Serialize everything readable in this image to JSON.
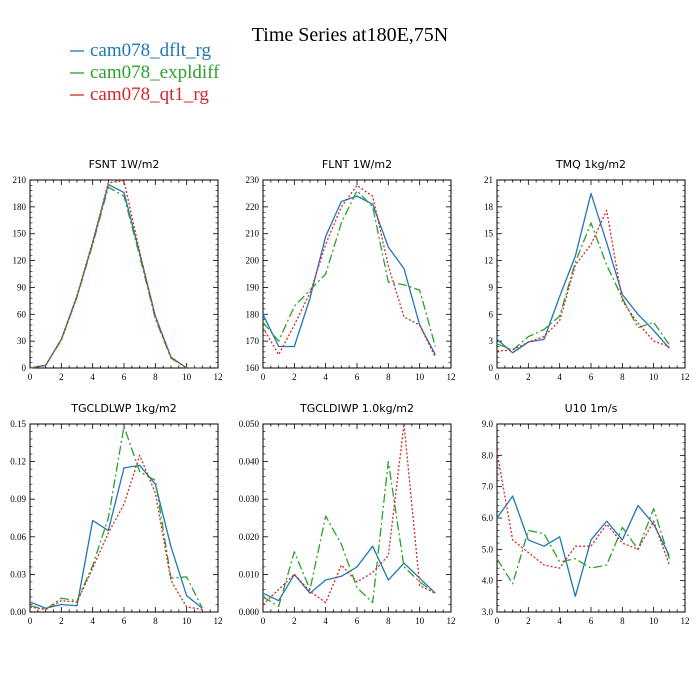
{
  "figure_title": "Time Series at180E,75N",
  "legend": [
    {
      "label": "cam078_dflt_rg",
      "color": "#1f77b4",
      "dash": "solid"
    },
    {
      "label": "cam078_expldiff",
      "color": "#2ca02c",
      "dash": "dashdot"
    },
    {
      "label": "cam078_qt1_rg",
      "color": "#d62728",
      "dash": "dotted"
    }
  ],
  "chart_data": [
    {
      "type": "line",
      "title": "FSNT   1W/m2",
      "xlim": [
        0,
        12
      ],
      "ylim": [
        0,
        210
      ],
      "xticks": [
        0,
        2,
        4,
        6,
        8,
        10,
        12
      ],
      "yticks": [
        0,
        30,
        60,
        90,
        120,
        150,
        180,
        210
      ],
      "ytick_labels": [
        "0",
        "30",
        "60",
        "90",
        "120",
        "150",
        "180",
        "210"
      ],
      "x": [
        0,
        1,
        2,
        3,
        4,
        5,
        6,
        7,
        8,
        9,
        10,
        11
      ],
      "series": [
        {
          "name": "cam078_dflt_rg",
          "values": [
            0,
            3,
            32,
            80,
            140,
            205,
            196,
            128,
            58,
            12,
            0,
            0
          ]
        },
        {
          "name": "cam078_expldiff",
          "values": [
            0,
            3,
            31,
            79,
            138,
            202,
            192,
            125,
            55,
            11,
            0,
            0
          ]
        },
        {
          "name": "cam078_qt1_rg",
          "values": [
            0,
            3,
            32,
            81,
            141,
            207,
            209,
            130,
            57,
            12,
            0,
            0
          ]
        }
      ]
    },
    {
      "type": "line",
      "title": "FLNT   1W/m2",
      "xlim": [
        0,
        12
      ],
      "ylim": [
        160,
        230
      ],
      "xticks": [
        0,
        2,
        4,
        6,
        8,
        10,
        12
      ],
      "yticks": [
        160,
        170,
        180,
        190,
        200,
        210,
        220,
        230
      ],
      "ytick_labels": [
        "160",
        "170",
        "180",
        "190",
        "200",
        "210",
        "220",
        "230"
      ],
      "x": [
        0,
        1,
        2,
        3,
        4,
        5,
        6,
        7,
        8,
        9,
        10,
        11
      ],
      "series": [
        {
          "name": "cam078_dflt_rg",
          "values": [
            180,
            168,
            168,
            186,
            209,
            222,
            224,
            221,
            205,
            197,
            176,
            165
          ]
        },
        {
          "name": "cam078_expldiff",
          "values": [
            177,
            170,
            183,
            189,
            195,
            214,
            226,
            220,
            192,
            191,
            189,
            168
          ]
        },
        {
          "name": "cam078_qt1_rg",
          "values": [
            175,
            165,
            176,
            188,
            206,
            220,
            228,
            224,
            198,
            179,
            176,
            164
          ]
        }
      ]
    },
    {
      "type": "line",
      "title": "TMQ   1kg/m2",
      "xlim": [
        0,
        12
      ],
      "ylim": [
        0,
        21
      ],
      "xticks": [
        0,
        2,
        4,
        6,
        8,
        10,
        12
      ],
      "yticks": [
        0,
        3,
        6,
        9,
        12,
        15,
        18,
        21
      ],
      "ytick_labels": [
        "0",
        "3",
        "6",
        "9",
        "12",
        "15",
        "18",
        "21"
      ],
      "x": [
        0,
        1,
        2,
        3,
        4,
        5,
        6,
        7,
        8,
        9,
        10,
        11
      ],
      "series": [
        {
          "name": "cam078_dflt_rg",
          "values": [
            3.2,
            1.7,
            2.9,
            3.2,
            8.0,
            12.5,
            19.5,
            14.0,
            8.2,
            6.0,
            4.2,
            2.2
          ]
        },
        {
          "name": "cam078_expldiff",
          "values": [
            2.7,
            2.0,
            3.5,
            4.3,
            5.8,
            11.8,
            16.2,
            11.5,
            7.8,
            4.5,
            5.1,
            2.6
          ]
        },
        {
          "name": "cam078_qt1_rg",
          "values": [
            1.9,
            2.0,
            2.9,
            3.5,
            5.3,
            11.5,
            13.8,
            17.6,
            7.5,
            5.0,
            3.0,
            2.4
          ]
        }
      ]
    },
    {
      "type": "line",
      "title": "TGCLDLWP   1kg/m2",
      "xlim": [
        0,
        12
      ],
      "ylim": [
        0,
        0.15
      ],
      "xticks": [
        0,
        2,
        4,
        6,
        8,
        10,
        12
      ],
      "yticks": [
        0,
        0.03,
        0.06,
        0.09,
        0.12,
        0.15
      ],
      "ytick_labels": [
        "0.00",
        "0.03",
        "0.06",
        "0.09",
        "0.12",
        "0.15"
      ],
      "x": [
        0,
        1,
        2,
        3,
        4,
        5,
        6,
        7,
        8,
        9,
        10,
        11
      ],
      "series": [
        {
          "name": "cam078_dflt_rg",
          "values": [
            0.008,
            0.003,
            0.006,
            0.005,
            0.073,
            0.065,
            0.115,
            0.117,
            0.102,
            0.052,
            0.013,
            0.003
          ]
        },
        {
          "name": "cam078_expldiff",
          "values": [
            0.005,
            0.002,
            0.011,
            0.009,
            0.037,
            0.075,
            0.148,
            0.112,
            0.105,
            0.027,
            0.028,
            0.003
          ]
        },
        {
          "name": "cam078_qt1_rg",
          "values": [
            0.004,
            0.002,
            0.009,
            0.008,
            0.035,
            0.063,
            0.086,
            0.125,
            0.095,
            0.025,
            0.004,
            0.002
          ]
        }
      ]
    },
    {
      "type": "line",
      "title": "TGCLDIWP   1.0kg/m2",
      "xlim": [
        0,
        12
      ],
      "ylim": [
        0,
        0.05
      ],
      "xticks": [
        0,
        2,
        4,
        6,
        8,
        10,
        12
      ],
      "yticks": [
        0,
        0.01,
        0.02,
        0.03,
        0.04,
        0.05
      ],
      "ytick_labels": [
        "0.000",
        "0.010",
        "0.020",
        "0.030",
        "0.040",
        "0.050"
      ],
      "x": [
        0,
        1,
        2,
        3,
        4,
        5,
        6,
        7,
        8,
        9,
        10,
        11
      ],
      "series": [
        {
          "name": "cam078_dflt_rg",
          "values": [
            0.005,
            0.003,
            0.01,
            0.005,
            0.0085,
            0.0095,
            0.012,
            0.0175,
            0.0085,
            0.013,
            0.009,
            0.005
          ]
        },
        {
          "name": "cam078_expldiff",
          "values": [
            0.004,
            0.0015,
            0.016,
            0.006,
            0.0255,
            0.018,
            0.0065,
            0.0025,
            0.04,
            0.012,
            0.008,
            0.005
          ]
        },
        {
          "name": "cam078_qt1_rg",
          "values": [
            0.002,
            0.006,
            0.01,
            0.0055,
            0.0025,
            0.0125,
            0.008,
            0.0105,
            0.015,
            0.05,
            0.007,
            0.005
          ]
        }
      ]
    },
    {
      "type": "line",
      "title": "U10   1m/s",
      "xlim": [
        0,
        12
      ],
      "ylim": [
        3,
        9
      ],
      "xticks": [
        0,
        2,
        4,
        6,
        8,
        10,
        12
      ],
      "yticks": [
        3,
        4,
        5,
        6,
        7,
        8,
        9
      ],
      "ytick_labels": [
        "3.0",
        "4.0",
        "5.0",
        "6.0",
        "7.0",
        "8.0",
        "9.0"
      ],
      "x": [
        0,
        1,
        2,
        3,
        4,
        5,
        6,
        7,
        8,
        9,
        10,
        11
      ],
      "series": [
        {
          "name": "cam078_dflt_rg",
          "values": [
            6.0,
            6.7,
            5.3,
            5.1,
            5.4,
            3.5,
            5.3,
            5.9,
            5.3,
            6.4,
            5.8,
            4.8
          ]
        },
        {
          "name": "cam078_expldiff",
          "values": [
            4.7,
            3.9,
            5.6,
            5.5,
            4.6,
            4.7,
            4.4,
            4.5,
            5.7,
            5.0,
            6.3,
            4.7
          ]
        },
        {
          "name": "cam078_qt1_rg",
          "values": [
            8.1,
            5.3,
            4.9,
            4.5,
            4.4,
            5.1,
            5.1,
            5.8,
            5.2,
            5.0,
            5.9,
            4.5
          ]
        }
      ]
    }
  ]
}
